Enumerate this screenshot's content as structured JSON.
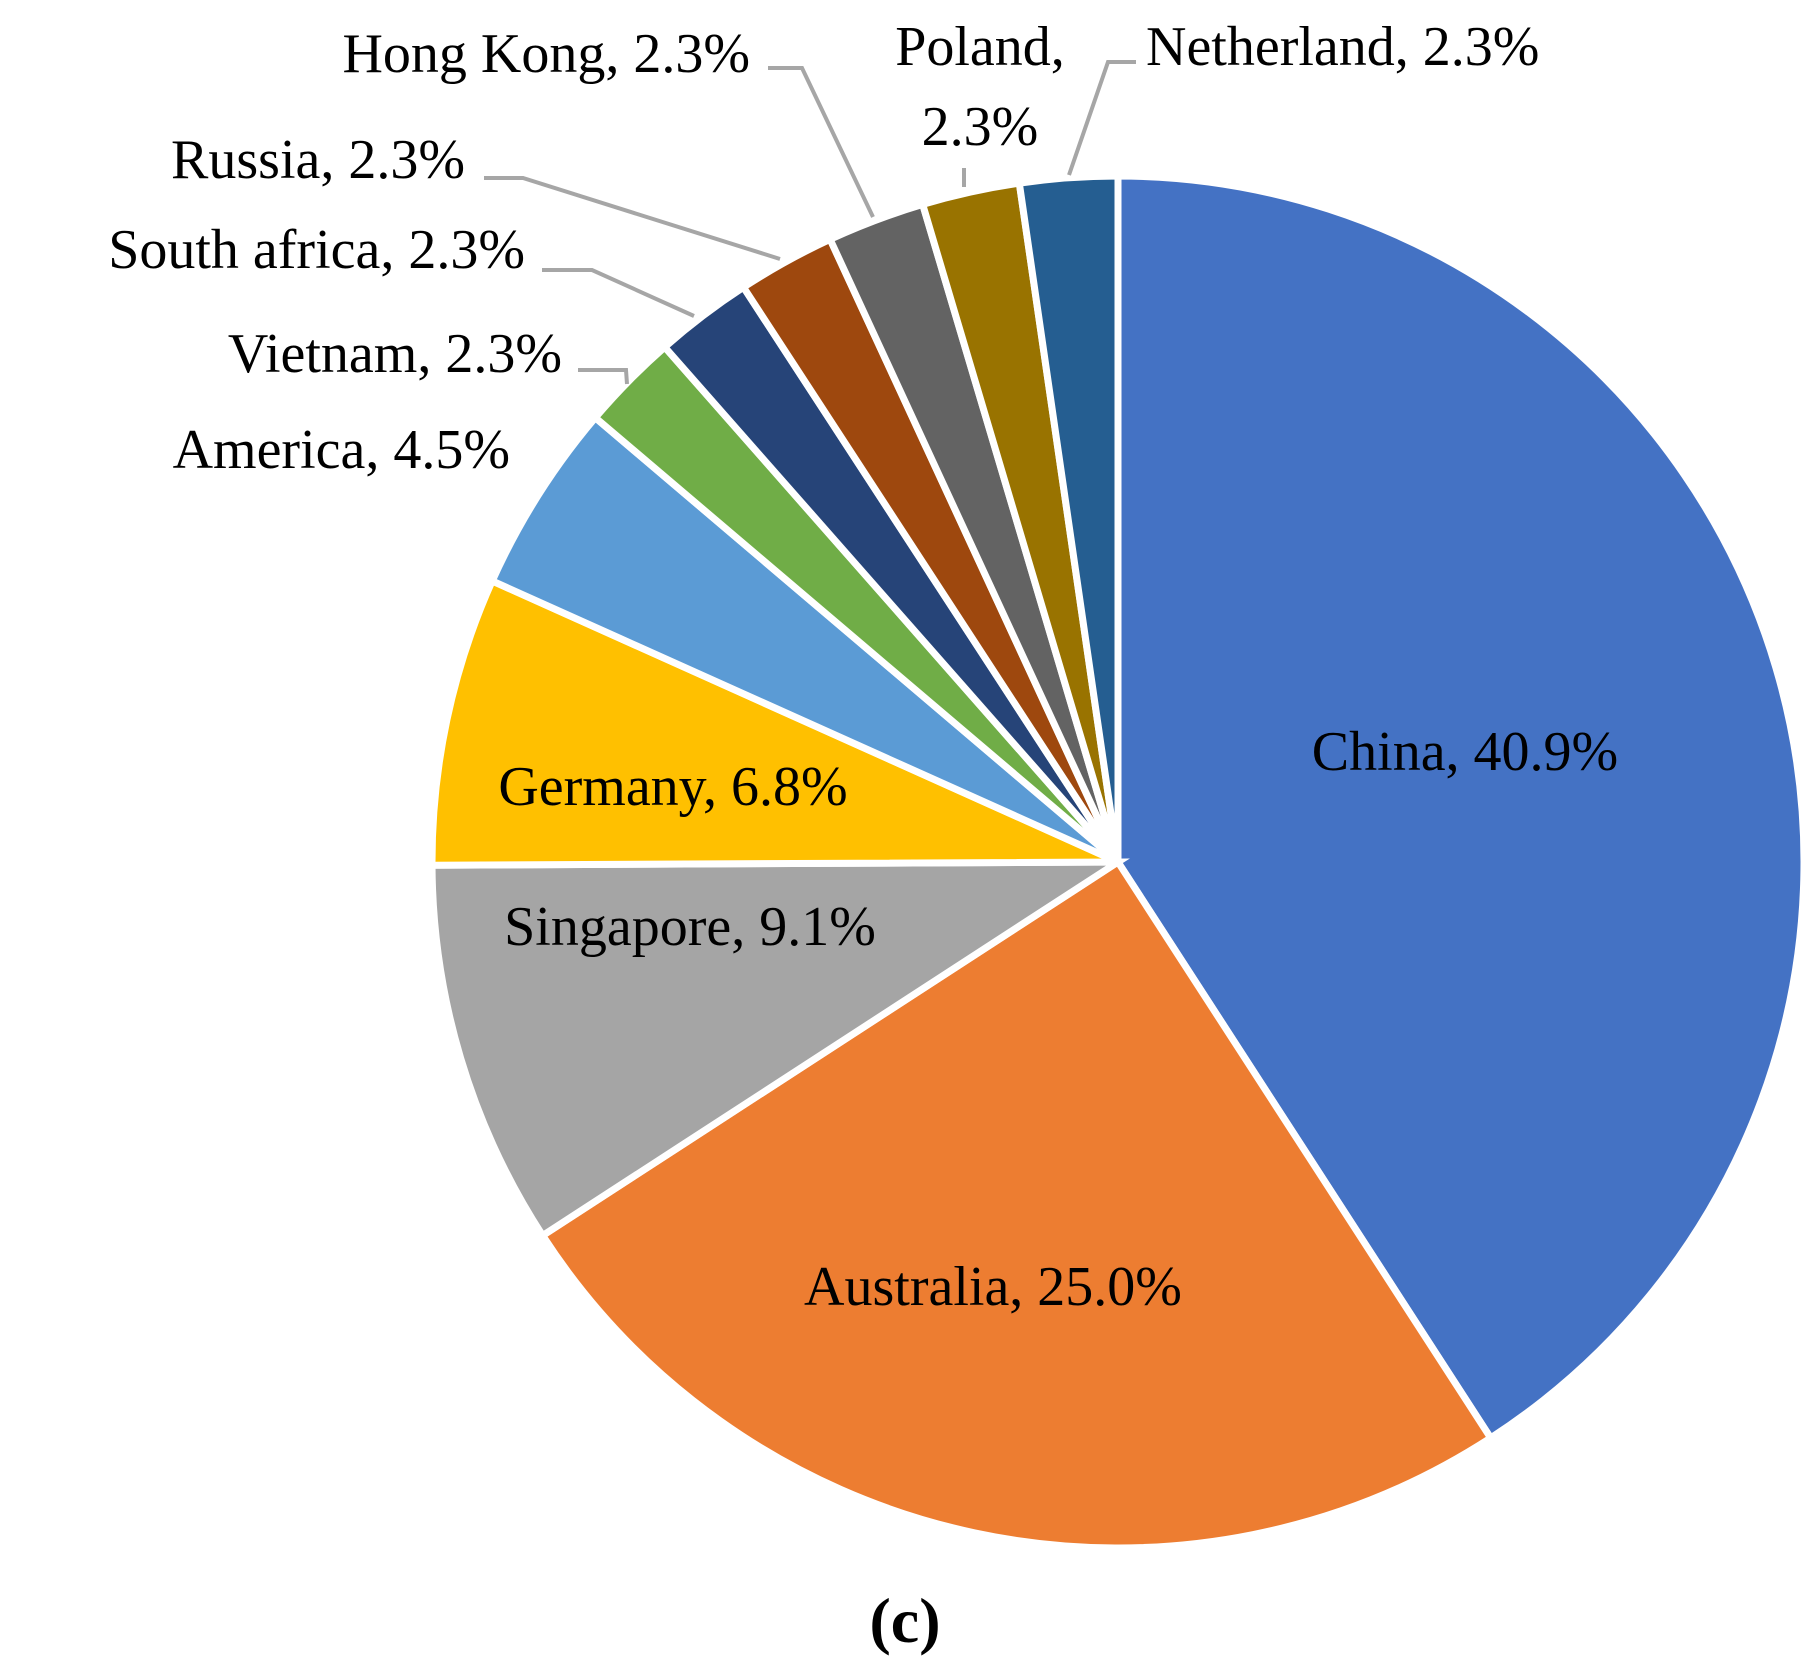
{
  "chart_data": {
    "type": "pie",
    "title": "",
    "caption": "(c)",
    "slices": [
      {
        "label": "China, 40.9%",
        "value": 40.9,
        "color": "#4472C4"
      },
      {
        "label": "Australia, 25.0%",
        "value": 25.0,
        "color": "#ED7D31"
      },
      {
        "label": "Singapore, 9.1%",
        "value": 9.1,
        "color": "#A5A5A5"
      },
      {
        "label": "Germany, 6.8%",
        "value": 6.8,
        "color": "#FFC000"
      },
      {
        "label": "America, 4.5%",
        "value": 4.5,
        "color": "#5B9BD5"
      },
      {
        "label": "Vietnam, 2.3%",
        "value": 2.3,
        "color": "#70AD47"
      },
      {
        "label": "South africa, 2.3%",
        "value": 2.3,
        "color": "#264478"
      },
      {
        "label": "Russia, 2.3%",
        "value": 2.3,
        "color": "#9E480E"
      },
      {
        "label": "Hong Kong, 2.3%",
        "value": 2.3,
        "color": "#636363"
      },
      {
        "label": "Poland, 2.3%",
        "label_lines": [
          "Poland,",
          "2.3%"
        ],
        "value": 2.3,
        "color": "#997300"
      },
      {
        "label": "Netherland, 2.3%",
        "value": 2.3,
        "color": "#255E91"
      }
    ]
  }
}
